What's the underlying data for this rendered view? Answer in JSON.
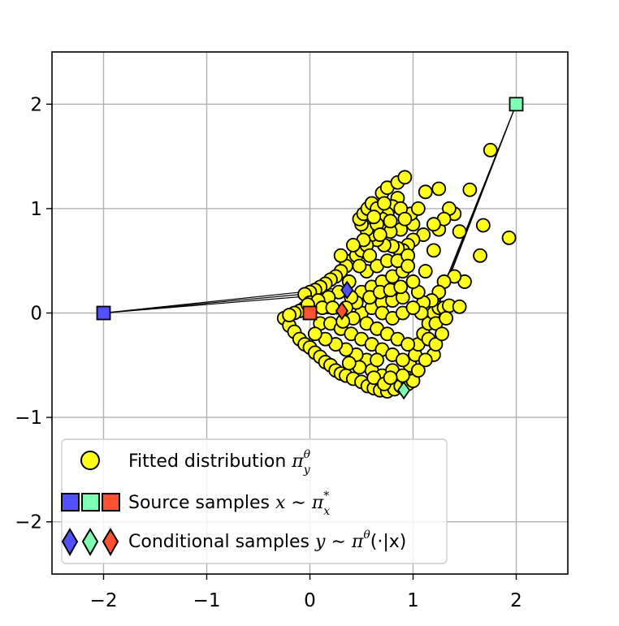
{
  "chart_data": {
    "type": "scatter",
    "title": "",
    "xlabel": "",
    "ylabel": "",
    "xlim": [
      -2.5,
      2.5
    ],
    "ylim": [
      -2.5,
      2.5
    ],
    "grid": true,
    "x_ticks": [
      -2,
      -1,
      0,
      1,
      2
    ],
    "y_ticks": [
      -2,
      -1,
      0,
      1,
      2
    ],
    "x_tick_labels": [
      "−2",
      "−1",
      "0",
      "1",
      "2"
    ],
    "y_tick_labels": [
      "−2",
      "−1",
      "0",
      "1",
      "2"
    ],
    "colors": {
      "fitted": "#ffff1a",
      "blue": "#5050ff",
      "green": "#7dffb4",
      "red": "#ff5032",
      "edge": "#000000",
      "grid": "#b0b0b0"
    },
    "source_samples": [
      {
        "name": "blue",
        "x": -2.0,
        "y": 0.0
      },
      {
        "name": "green",
        "x": 2.0,
        "y": 2.0
      },
      {
        "name": "red",
        "x": 0.0,
        "y": 0.0
      }
    ],
    "conditional_samples": [
      {
        "name": "blue",
        "x": 0.36,
        "y": 0.22
      },
      {
        "name": "green",
        "x": 0.91,
        "y": -0.74
      },
      {
        "name": "red",
        "x": 0.31,
        "y": 0.02
      }
    ],
    "fitted_points": [
      [
        -0.25,
        -0.05
      ],
      [
        -0.2,
        -0.12
      ],
      [
        -0.15,
        -0.18
      ],
      [
        -0.1,
        -0.25
      ],
      [
        -0.05,
        -0.3
      ],
      [
        0.0,
        -0.33
      ],
      [
        0.05,
        -0.38
      ],
      [
        0.1,
        -0.42
      ],
      [
        0.15,
        -0.47
      ],
      [
        0.2,
        -0.5
      ],
      [
        0.25,
        -0.55
      ],
      [
        0.3,
        -0.58
      ],
      [
        0.35,
        -0.6
      ],
      [
        0.42,
        -0.63
      ],
      [
        0.5,
        -0.66
      ],
      [
        0.56,
        -0.7
      ],
      [
        0.62,
        -0.72
      ],
      [
        0.68,
        -0.74
      ],
      [
        0.75,
        -0.75
      ],
      [
        0.82,
        -0.73
      ],
      [
        0.88,
        -0.7
      ],
      [
        0.95,
        -0.68
      ],
      [
        1.0,
        -0.65
      ],
      [
        0.97,
        -0.5
      ],
      [
        1.02,
        -0.4
      ],
      [
        1.05,
        -0.3
      ],
      [
        1.1,
        -0.2
      ],
      [
        1.15,
        -0.1
      ],
      [
        1.2,
        0.0
      ],
      [
        1.25,
        0.05
      ],
      [
        1.3,
        0.05
      ],
      [
        1.35,
        0.07
      ],
      [
        1.45,
        0.06
      ],
      [
        1.5,
        0.3
      ],
      [
        1.4,
        0.35
      ],
      [
        1.3,
        0.3
      ],
      [
        1.25,
        0.2
      ],
      [
        1.18,
        0.12
      ],
      [
        1.1,
        0.1
      ],
      [
        1.08,
        0.0
      ],
      [
        1.15,
        -0.25
      ],
      [
        1.2,
        -0.4
      ],
      [
        1.22,
        -0.1
      ],
      [
        1.12,
        0.4
      ],
      [
        1.2,
        0.6
      ],
      [
        1.25,
        0.8
      ],
      [
        1.1,
        0.75
      ],
      [
        1.0,
        0.7
      ],
      [
        0.95,
        0.65
      ],
      [
        0.9,
        0.6
      ],
      [
        0.85,
        0.62
      ],
      [
        0.8,
        0.64
      ],
      [
        0.72,
        0.65
      ],
      [
        0.65,
        0.7
      ],
      [
        0.6,
        0.75
      ],
      [
        0.55,
        0.8
      ],
      [
        0.5,
        0.85
      ],
      [
        0.48,
        0.9
      ],
      [
        0.52,
        0.95
      ],
      [
        0.56,
        1.0
      ],
      [
        0.6,
        1.05
      ],
      [
        0.7,
        1.15
      ],
      [
        0.75,
        1.2
      ],
      [
        0.85,
        1.25
      ],
      [
        0.92,
        1.3
      ],
      [
        0.85,
        1.1
      ],
      [
        0.8,
        1.02
      ],
      [
        0.75,
        0.95
      ],
      [
        0.7,
        0.9
      ],
      [
        0.65,
        0.85
      ],
      [
        1.12,
        1.16
      ],
      [
        1.25,
        1.19
      ],
      [
        1.55,
        1.18
      ],
      [
        1.75,
        1.56
      ],
      [
        1.93,
        0.72
      ],
      [
        1.68,
        0.84
      ],
      [
        1.65,
        0.55
      ],
      [
        1.45,
        0.78
      ],
      [
        1.4,
        0.95
      ],
      [
        1.35,
        1.0
      ],
      [
        1.3,
        0.9
      ],
      [
        1.2,
        0.85
      ],
      [
        0.4,
        0.5
      ],
      [
        0.45,
        0.55
      ],
      [
        0.5,
        0.6
      ],
      [
        0.55,
        0.65
      ],
      [
        0.35,
        0.45
      ],
      [
        0.3,
        0.4
      ],
      [
        0.25,
        0.35
      ],
      [
        0.2,
        0.32
      ],
      [
        0.15,
        0.28
      ],
      [
        0.1,
        0.25
      ],
      [
        0.05,
        0.22
      ],
      [
        0.0,
        0.2
      ],
      [
        -0.05,
        0.18
      ],
      [
        0.0,
        0.1
      ],
      [
        -0.05,
        0.05
      ],
      [
        -0.1,
        0.02
      ],
      [
        -0.15,
        0.0
      ],
      [
        -0.2,
        -0.02
      ],
      [
        0.1,
        -0.1
      ],
      [
        0.2,
        -0.1
      ],
      [
        0.3,
        -0.15
      ],
      [
        0.4,
        -0.2
      ],
      [
        0.5,
        -0.25
      ],
      [
        0.6,
        -0.3
      ],
      [
        0.7,
        -0.35
      ],
      [
        0.8,
        -0.4
      ],
      [
        0.9,
        -0.45
      ],
      [
        0.55,
        -0.45
      ],
      [
        0.45,
        -0.4
      ],
      [
        0.35,
        -0.35
      ],
      [
        0.25,
        -0.3
      ],
      [
        0.15,
        -0.25
      ],
      [
        0.05,
        -0.2
      ],
      [
        0.6,
        -0.55
      ],
      [
        0.7,
        -0.6
      ],
      [
        0.8,
        -0.55
      ],
      [
        0.9,
        -0.6
      ],
      [
        0.65,
        -0.45
      ],
      [
        0.5,
        0.0
      ],
      [
        0.6,
        0.05
      ],
      [
        0.7,
        0.1
      ],
      [
        0.8,
        0.12
      ],
      [
        0.9,
        0.15
      ],
      [
        0.5,
        0.2
      ],
      [
        0.6,
        0.25
      ],
      [
        0.7,
        0.3
      ],
      [
        0.8,
        0.35
      ],
      [
        0.9,
        0.4
      ],
      [
        0.55,
        0.4
      ],
      [
        0.65,
        0.45
      ],
      [
        0.75,
        0.5
      ],
      [
        0.85,
        0.5
      ],
      [
        0.95,
        0.55
      ],
      [
        0.45,
        0.1
      ],
      [
        0.4,
        0.15
      ],
      [
        0.35,
        0.05
      ],
      [
        0.55,
        -0.1
      ],
      [
        0.65,
        -0.15
      ],
      [
        0.75,
        -0.2
      ],
      [
        0.85,
        -0.25
      ],
      [
        0.95,
        -0.3
      ],
      [
        0.7,
        0.0
      ],
      [
        0.8,
        -0.05
      ],
      [
        0.9,
        0.0
      ],
      [
        1.0,
        0.05
      ],
      [
        1.05,
        0.2
      ],
      [
        1.0,
        0.3
      ],
      [
        0.95,
        0.45
      ],
      [
        1.0,
        0.85
      ],
      [
        0.88,
        0.8
      ],
      [
        0.78,
        0.78
      ],
      [
        0.68,
        0.75
      ],
      [
        0.58,
        0.55
      ],
      [
        0.48,
        0.45
      ],
      [
        0.38,
        0.3
      ],
      [
        0.28,
        0.2
      ],
      [
        0.18,
        0.15
      ],
      [
        0.08,
        0.12
      ],
      [
        -0.02,
        0.08
      ],
      [
        0.12,
        0.05
      ],
      [
        0.22,
        0.05
      ],
      [
        0.42,
        -0.05
      ],
      [
        0.32,
        -0.08
      ],
      [
        0.62,
        -0.62
      ],
      [
        0.72,
        -0.68
      ],
      [
        0.78,
        -0.62
      ],
      [
        0.48,
        -0.52
      ],
      [
        0.38,
        -0.48
      ],
      [
        1.05,
        -0.55
      ],
      [
        1.12,
        -0.45
      ],
      [
        1.22,
        -0.3
      ],
      [
        1.28,
        -0.2
      ],
      [
        1.32,
        -0.05
      ],
      [
        0.98,
        0.95
      ],
      [
        1.05,
        1.0
      ],
      [
        0.65,
        1.0
      ],
      [
        0.72,
        1.05
      ],
      [
        0.88,
        1.0
      ],
      [
        0.92,
        0.9
      ],
      [
        0.78,
        0.88
      ],
      [
        0.62,
        0.92
      ],
      [
        0.52,
        0.7
      ],
      [
        0.42,
        0.65
      ],
      [
        0.3,
        0.55
      ],
      [
        0.58,
        0.15
      ],
      [
        0.68,
        0.2
      ],
      [
        0.78,
        0.22
      ],
      [
        0.88,
        0.25
      ]
    ]
  },
  "legend": {
    "items": [
      {
        "prefix": "Fitted distribution ",
        "symbol": "π",
        "sub": "y",
        "sup": "θ",
        "suffix": ""
      },
      {
        "prefix": "Source samples ",
        "symbol": "x ∼ π",
        "sub": "x",
        "sup": "*",
        "suffix": ""
      },
      {
        "prefix": "Conditional samples ",
        "symbol": "y ∼ π",
        "sub": "",
        "sup": "θ",
        "suffix": "(·|x)"
      }
    ]
  }
}
